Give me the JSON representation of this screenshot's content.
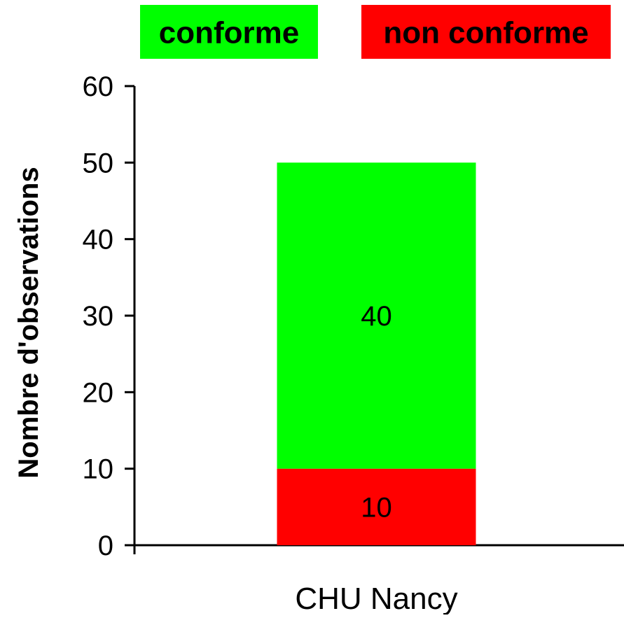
{
  "chart_data": {
    "type": "bar",
    "stacked": true,
    "title": "",
    "xlabel": "",
    "ylabel": "Nombre d'observations",
    "ylim": [
      0,
      60
    ],
    "yticks": [
      0,
      10,
      20,
      30,
      40,
      50,
      60
    ],
    "ytick_labels": [
      "0",
      "10",
      "20",
      "30",
      "40",
      "50",
      "60"
    ],
    "grid": false,
    "legend_position": "top",
    "categories": [
      "CHU Nancy"
    ],
    "series": [
      {
        "name": "non conforme",
        "values": [
          10
        ],
        "color": "#ff0000",
        "data_labels": [
          "10"
        ]
      },
      {
        "name": "conforme",
        "values": [
          40
        ],
        "color": "#00ff00",
        "data_labels": [
          "40"
        ]
      }
    ],
    "legend_order": [
      "conforme",
      "non conforme"
    ],
    "axis_color": "#000000"
  }
}
